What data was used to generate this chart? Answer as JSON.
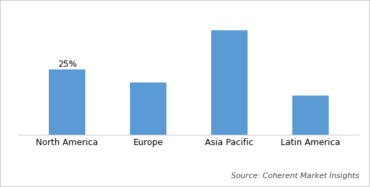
{
  "categories": [
    "North America",
    "Europe",
    "Asia Pacific",
    "Latin America"
  ],
  "values": [
    25,
    20,
    40,
    15
  ],
  "bar_color": "#5b9bd5",
  "annotation_text": "25%",
  "annotation_bar_index": 0,
  "source_text": "Source: Coherent Market Insights",
  "background_color": "#ffffff",
  "ylim": [
    0,
    46
  ],
  "bar_width": 0.45,
  "annotation_fontsize": 9,
  "source_fontsize": 8,
  "tick_fontsize": 9,
  "border_color": "#cccccc",
  "figure_size": [
    5.38,
    2.72
  ],
  "dpi": 100
}
